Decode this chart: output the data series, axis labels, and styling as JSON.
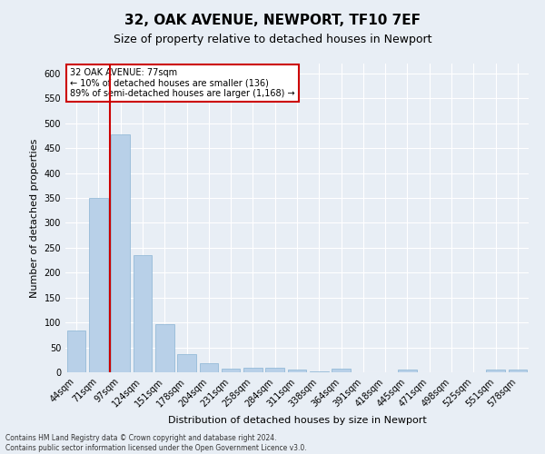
{
  "title": "32, OAK AVENUE, NEWPORT, TF10 7EF",
  "subtitle": "Size of property relative to detached houses in Newport",
  "xlabel": "Distribution of detached houses by size in Newport",
  "ylabel": "Number of detached properties",
  "categories": [
    "44sqm",
    "71sqm",
    "97sqm",
    "124sqm",
    "151sqm",
    "178sqm",
    "204sqm",
    "231sqm",
    "258sqm",
    "284sqm",
    "311sqm",
    "338sqm",
    "364sqm",
    "391sqm",
    "418sqm",
    "445sqm",
    "471sqm",
    "498sqm",
    "525sqm",
    "551sqm",
    "578sqm"
  ],
  "values": [
    83,
    350,
    478,
    235,
    96,
    37,
    18,
    8,
    9,
    9,
    5,
    1,
    7,
    0,
    0,
    6,
    0,
    0,
    0,
    6,
    6
  ],
  "bar_color": "#b8d0e8",
  "bar_edge_color": "#8ab4d4",
  "highlight_color": "#cc0000",
  "vline_x": 1.5,
  "ylim": [
    0,
    620
  ],
  "yticks": [
    0,
    50,
    100,
    150,
    200,
    250,
    300,
    350,
    400,
    450,
    500,
    550,
    600
  ],
  "annotation_title": "32 OAK AVENUE: 77sqm",
  "annotation_line1": "← 10% of detached houses are smaller (136)",
  "annotation_line2": "89% of semi-detached houses are larger (1,168) →",
  "footnote1": "Contains HM Land Registry data © Crown copyright and database right 2024.",
  "footnote2": "Contains public sector information licensed under the Open Government Licence v3.0.",
  "bg_color": "#e8eef5",
  "plot_bg_color": "#e8eef5",
  "grid_color": "#ffffff",
  "title_fontsize": 11,
  "subtitle_fontsize": 9,
  "axis_label_fontsize": 8,
  "tick_fontsize": 7,
  "footnote_fontsize": 5.5,
  "annotation_fontsize": 7
}
